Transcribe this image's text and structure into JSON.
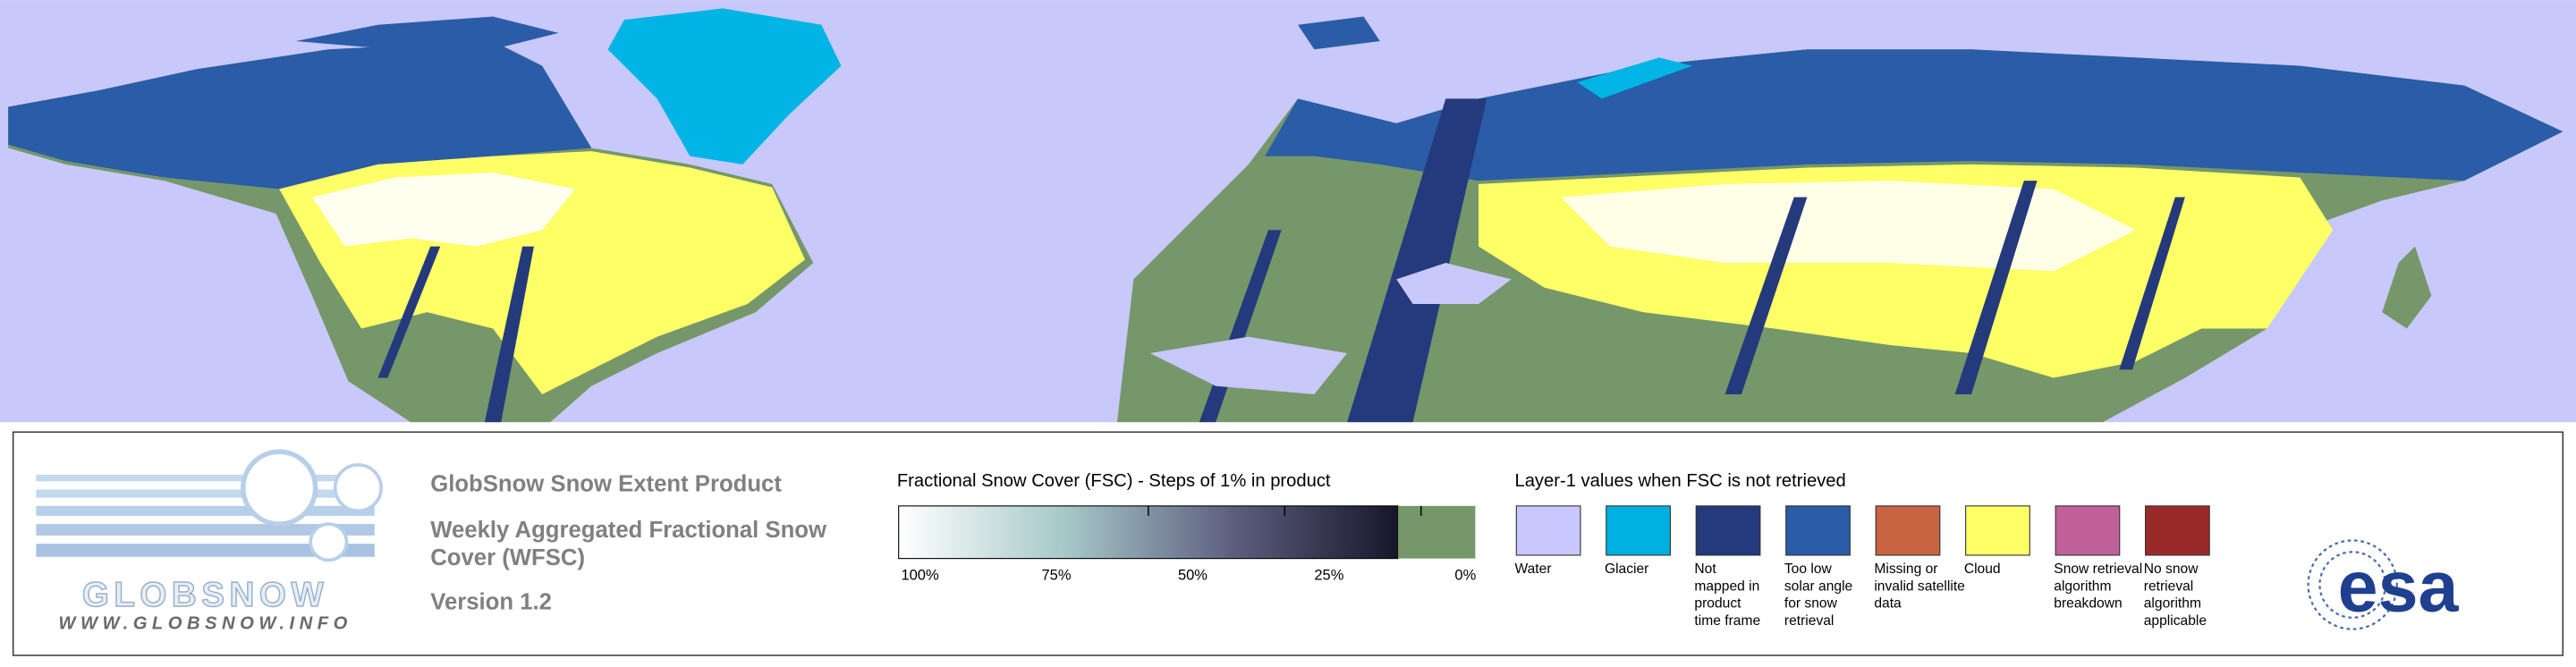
{
  "logo": {
    "name": "GLOBSNOW",
    "url": "WWW.GLOBSNOW.INFO"
  },
  "product": {
    "title": "GlobSnow Snow Extent Product",
    "subtitle_lines": [
      "Weekly Aggregated Fractional Snow",
      "Cover (WFSC)"
    ],
    "version": "Version 1.2"
  },
  "colorbar": {
    "title": "Fractional Snow Cover (FSC) - Steps of 1% in product",
    "ticks": [
      {
        "value": 100,
        "label": "100%"
      },
      {
        "value": 75,
        "label": "75%"
      },
      {
        "value": 50,
        "label": "50%"
      },
      {
        "value": 25,
        "label": "25%"
      },
      {
        "value": 0,
        "label": "0%"
      }
    ],
    "gradient": [
      "#ffffff",
      "#a6c8c8",
      "#5e5f80",
      "#16162a"
    ],
    "zero_color": "#75976a"
  },
  "layer1": {
    "title": "Layer-1 values when FSC is not retrieved",
    "items": [
      {
        "color": "#c8c8ff",
        "label_lines": [
          "Water"
        ]
      },
      {
        "color": "#00b0e0",
        "label_lines": [
          "Glacier"
        ]
      },
      {
        "color": "#243a7c",
        "label_lines": [
          "Not",
          "mapped in",
          "product",
          "time frame"
        ]
      },
      {
        "color": "#2a5ca8",
        "label_lines": [
          "Too low",
          "solar angle",
          "for snow",
          "retrieval"
        ]
      },
      {
        "color": "#c86440",
        "label_lines": [
          "Missing or",
          "invalid satellite",
          "data"
        ]
      },
      {
        "color": "#ffff66",
        "label_lines": [
          "Cloud"
        ]
      },
      {
        "color": "#c0609a",
        "label_lines": [
          "Snow retrieval",
          "algorithm",
          "breakdown"
        ]
      },
      {
        "color": "#9a2a2a",
        "label_lines": [
          "No snow",
          "retrieval",
          "algorithm",
          "applicable"
        ]
      }
    ]
  },
  "esa": "esa"
}
